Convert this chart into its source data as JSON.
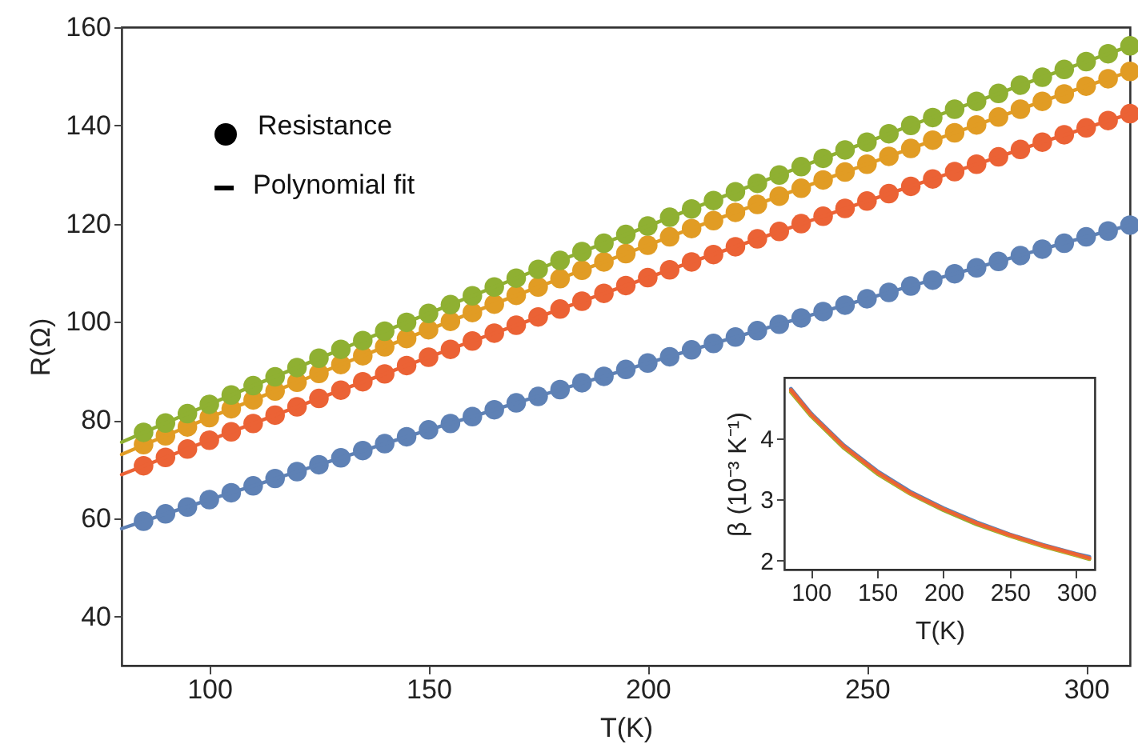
{
  "chart_data": [
    {
      "type": "scatter",
      "xlabel": "T(K)",
      "ylabel": "R(Ω)",
      "xlim": [
        80,
        310
      ],
      "ylim": [
        30,
        160
      ],
      "xticks": [
        100,
        150,
        200,
        250,
        300
      ],
      "yticks": [
        40,
        60,
        80,
        100,
        120,
        140,
        160
      ],
      "annotations": [
        "Resistance",
        "Polynomial fit"
      ],
      "x": [
        85,
        90,
        95,
        100,
        105,
        110,
        115,
        120,
        125,
        130,
        135,
        140,
        145,
        150,
        155,
        160,
        165,
        170,
        175,
        180,
        185,
        190,
        195,
        200,
        205,
        210,
        215,
        220,
        225,
        230,
        235,
        240,
        245,
        250,
        255,
        260,
        265,
        270,
        275,
        280,
        285,
        290,
        295,
        300,
        305,
        310
      ],
      "series": [
        {
          "marker": "circle",
          "color": "#5e81b5",
          "values": [
            59.4,
            60.9,
            62.3,
            63.8,
            65.2,
            66.6,
            68.1,
            69.5,
            70.9,
            72.3,
            73.8,
            75.2,
            76.6,
            78.0,
            79.3,
            80.7,
            82.1,
            83.5,
            84.8,
            86.2,
            87.6,
            88.9,
            90.3,
            91.6,
            92.9,
            94.3,
            95.6,
            96.9,
            98.2,
            99.5,
            100.8,
            102.1,
            103.4,
            104.7,
            106.0,
            107.3,
            108.5,
            109.8,
            111.0,
            112.3,
            113.5,
            114.8,
            116.0,
            117.3,
            118.5,
            119.7
          ]
        },
        {
          "marker": "circle",
          "color": "#eb6235",
          "values": [
            70.7,
            72.4,
            74.1,
            75.9,
            77.6,
            79.3,
            81.0,
            82.7,
            84.4,
            86.1,
            87.8,
            89.4,
            91.1,
            92.8,
            94.4,
            96.1,
            97.7,
            99.3,
            101.0,
            102.6,
            104.2,
            105.8,
            107.4,
            109.0,
            110.6,
            112.2,
            113.7,
            115.3,
            116.9,
            118.4,
            120.0,
            121.5,
            123.1,
            124.6,
            126.1,
            127.6,
            129.1,
            130.6,
            132.1,
            133.6,
            135.1,
            136.6,
            138.1,
            139.5,
            141.0,
            142.4
          ]
        },
        {
          "marker": "circle",
          "color": "#e19c24",
          "values": [
            75.0,
            76.8,
            78.6,
            80.5,
            82.3,
            84.1,
            85.9,
            87.7,
            89.5,
            91.3,
            93.1,
            94.9,
            96.6,
            98.4,
            100.1,
            101.9,
            103.6,
            105.4,
            107.1,
            108.8,
            110.5,
            112.2,
            113.9,
            115.6,
            117.3,
            119.0,
            120.6,
            122.3,
            123.9,
            125.6,
            127.2,
            128.9,
            130.5,
            132.1,
            133.7,
            135.3,
            137.0,
            138.5,
            140.1,
            141.7,
            143.3,
            144.9,
            146.4,
            148.0,
            149.5,
            151.0
          ]
        },
        {
          "marker": "circle",
          "color": "#8fb032",
          "values": [
            77.5,
            79.4,
            81.3,
            83.2,
            85.1,
            87.0,
            88.8,
            90.7,
            92.6,
            94.4,
            96.2,
            98.1,
            99.9,
            101.7,
            103.5,
            105.3,
            107.1,
            108.9,
            110.7,
            112.5,
            114.3,
            116.0,
            117.8,
            119.5,
            121.3,
            123.0,
            124.7,
            126.5,
            128.2,
            129.9,
            131.6,
            133.3,
            135.0,
            136.6,
            138.3,
            140.0,
            141.6,
            143.3,
            144.9,
            146.5,
            148.2,
            149.8,
            151.4,
            153.0,
            154.6,
            156.2
          ]
        },
        {
          "type": "line",
          "color": "#5e81b5",
          "x": [
            80,
            90,
            100,
            110,
            120,
            130,
            140,
            150,
            160,
            170,
            180,
            190,
            200,
            210,
            220,
            230,
            240,
            250,
            260,
            270,
            280,
            290,
            300,
            310
          ],
          "values": [
            57.9,
            60.9,
            63.8,
            66.6,
            69.5,
            72.3,
            75.2,
            78.0,
            80.7,
            83.5,
            86.2,
            88.9,
            91.6,
            94.3,
            96.9,
            99.5,
            102.1,
            104.7,
            107.3,
            109.8,
            112.3,
            114.8,
            117.3,
            119.7
          ]
        },
        {
          "type": "line",
          "color": "#eb6235",
          "x": [
            80,
            90,
            100,
            110,
            120,
            130,
            140,
            150,
            160,
            170,
            180,
            190,
            200,
            210,
            220,
            230,
            240,
            250,
            260,
            270,
            280,
            290,
            300,
            310
          ],
          "values": [
            68.9,
            72.4,
            75.9,
            79.3,
            82.7,
            86.1,
            89.4,
            92.8,
            96.1,
            99.3,
            102.6,
            105.8,
            109.0,
            112.2,
            115.3,
            118.4,
            121.5,
            124.6,
            127.6,
            130.6,
            133.6,
            136.6,
            139.5,
            142.4
          ]
        },
        {
          "type": "line",
          "color": "#e19c24",
          "x": [
            80,
            90,
            100,
            110,
            120,
            130,
            140,
            150,
            160,
            170,
            180,
            190,
            200,
            210,
            220,
            230,
            240,
            250,
            260,
            270,
            280,
            290,
            300,
            310
          ],
          "values": [
            73.0,
            76.8,
            80.5,
            84.1,
            87.7,
            91.3,
            94.9,
            98.4,
            101.9,
            105.4,
            108.8,
            112.2,
            115.6,
            119.0,
            122.3,
            125.6,
            128.9,
            132.1,
            135.3,
            138.5,
            141.7,
            144.9,
            148.0,
            151.0
          ]
        },
        {
          "type": "line",
          "color": "#8fb032",
          "x": [
            80,
            90,
            100,
            110,
            120,
            130,
            140,
            150,
            160,
            170,
            180,
            190,
            200,
            210,
            220,
            230,
            240,
            250,
            260,
            270,
            280,
            290,
            300,
            310
          ],
          "values": [
            75.5,
            79.4,
            83.2,
            87.0,
            90.7,
            94.4,
            98.1,
            101.7,
            105.3,
            108.9,
            112.5,
            116.0,
            119.5,
            123.0,
            126.5,
            129.9,
            133.3,
            136.6,
            140.0,
            143.3,
            146.5,
            149.8,
            153.0,
            156.2
          ]
        }
      ]
    },
    {
      "type": "line",
      "xlabel": "T(K)",
      "ylabel": "β (10⁻³ K⁻¹)",
      "xlim": [
        80,
        314
      ],
      "ylim": [
        1.85,
        5.0
      ],
      "xticks": [
        100,
        150,
        200,
        250,
        300
      ],
      "yticks": [
        2,
        3,
        4
      ],
      "x": [
        85,
        100,
        125,
        150,
        175,
        200,
        225,
        250,
        275,
        300,
        310
      ],
      "series": [
        {
          "color": "#5e81b5",
          "values": [
            4.82,
            4.42,
            3.89,
            3.47,
            3.13,
            2.86,
            2.63,
            2.43,
            2.26,
            2.11,
            2.06
          ]
        },
        {
          "color": "#8fb032",
          "values": [
            4.76,
            4.37,
            3.84,
            3.42,
            3.09,
            2.82,
            2.59,
            2.4,
            2.23,
            2.08,
            2.02
          ]
        },
        {
          "color": "#e19c24",
          "values": [
            4.78,
            4.39,
            3.86,
            3.44,
            3.1,
            2.84,
            2.61,
            2.41,
            2.24,
            2.09,
            2.03
          ]
        },
        {
          "color": "#eb6235",
          "values": [
            4.8,
            4.4,
            3.87,
            3.45,
            3.11,
            2.84,
            2.61,
            2.42,
            2.25,
            2.1,
            2.04
          ]
        }
      ]
    }
  ]
}
